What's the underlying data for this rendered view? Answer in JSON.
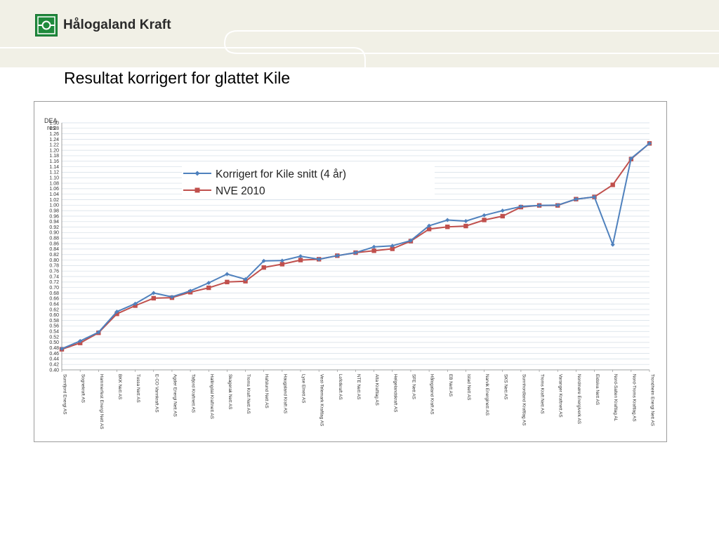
{
  "brand": {
    "name": "Hålogaland Kraft",
    "color": "#1f8a3c"
  },
  "page": {
    "title": "Resultat korrigert for glattet Kile"
  },
  "chart_data": {
    "type": "line",
    "title": "",
    "ylabel": "DEA res",
    "xlabel": "",
    "ylim": [
      0.4,
      1.3
    ],
    "y_tick_step": 0.02,
    "grid": true,
    "legend_placement": "top-center",
    "categories": [
      "Sunnfjord Energi AS",
      "Sognekraft AS",
      "Hammerfest Energi Nett AS",
      "BKK Nett AS",
      "Tussa Nett AS",
      "E-CO Vannkraft AS",
      "Agder Energi Nett AS",
      "Tafjord Kraftnett AS",
      "Hallingdal Kraftnett AS",
      "Skagerak Nett AS",
      "Troms Kraft Nett AS",
      "Hafslund Nett AS",
      "Haugaland Kraft AS",
      "Lyse Elnett AS",
      "Vest-Telemark Kraftlag AS",
      "Lofotkraft AS",
      "NTE Nett AS",
      "Alta Kraftlag AS",
      "Helgelandskraft AS",
      "SFE Nett AS",
      "Hålogaland Kraft AS",
      "EB Nett AS",
      "Istad Nett AS",
      "Narvik Energinett AS",
      "SKS Nett AS",
      "Sunnhordland Kraftlag AS",
      "Troms Kraft Nett AS",
      "Varanger Kraftnett AS",
      "Nordmøre Energiverk AS",
      "Eidsiva Nett AS",
      "Nord-Salten Kraftlag AL",
      "Nord-Troms Kraftlag AS",
      "Trondheim Energi Nett AS"
    ],
    "series": [
      {
        "name": "Korrigert for Kile snitt  (4 år)",
        "color": "#4f81bd",
        "marker": "diamond",
        "values": [
          0.477,
          0.505,
          0.537,
          0.612,
          0.641,
          0.68,
          0.666,
          0.688,
          0.717,
          0.749,
          0.73,
          0.797,
          0.798,
          0.814,
          0.803,
          0.816,
          0.827,
          0.848,
          0.852,
          0.871,
          0.925,
          0.946,
          0.942,
          0.963,
          0.98,
          0.995,
          0.999,
          1.0,
          1.022,
          1.03,
          0.856,
          1.17,
          1.225
        ]
      },
      {
        "name": "NVE 2010",
        "color": "#c0504d",
        "marker": "square",
        "values": [
          0.475,
          0.498,
          0.535,
          0.604,
          0.634,
          0.661,
          0.663,
          0.683,
          0.699,
          0.72,
          0.723,
          0.773,
          0.785,
          0.8,
          0.803,
          0.816,
          0.827,
          0.834,
          0.841,
          0.869,
          0.913,
          0.921,
          0.924,
          0.946,
          0.96,
          0.993,
          0.999,
          0.999,
          1.022,
          1.03,
          1.074,
          1.168,
          1.225
        ]
      }
    ]
  }
}
